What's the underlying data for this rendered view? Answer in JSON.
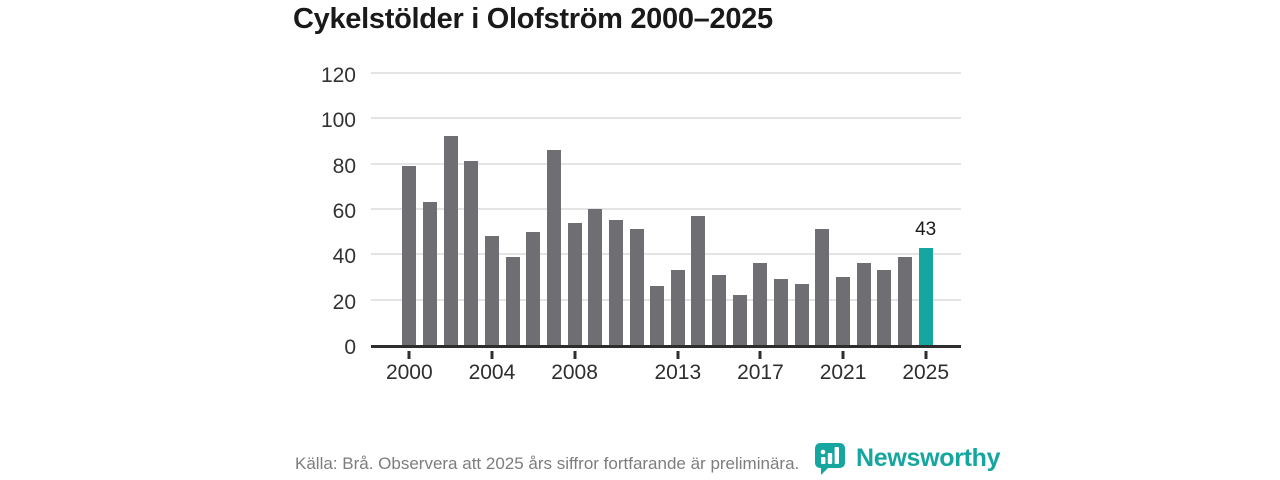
{
  "chart_data": {
    "type": "bar",
    "title": "Cykelstölder i Olofström 2000–2025",
    "x": [
      2000,
      2001,
      2002,
      2003,
      2004,
      2005,
      2006,
      2007,
      2008,
      2009,
      2010,
      2011,
      2012,
      2013,
      2014,
      2015,
      2016,
      2017,
      2018,
      2019,
      2020,
      2021,
      2022,
      2023,
      2024,
      2025
    ],
    "values": [
      79,
      63,
      92,
      81,
      48,
      39,
      50,
      86,
      54,
      60,
      55,
      51,
      26,
      33,
      57,
      31,
      22,
      36,
      29,
      27,
      51,
      30,
      36,
      33,
      39,
      43
    ],
    "xlabel": "",
    "ylabel": "",
    "ylim": [
      0,
      120
    ],
    "yticks": [
      0,
      20,
      40,
      60,
      80,
      100,
      120
    ],
    "xticks": [
      2000,
      2004,
      2008,
      2013,
      2017,
      2021,
      2025
    ],
    "grid": true,
    "legend": "none",
    "bar_color": "#6e6e73",
    "gridline_color": "#e4e4e4",
    "axis_color": "#2e2e2e",
    "highlight_year": 2025,
    "highlight_color": "#16a6a0",
    "highlight_label": "43"
  },
  "footer": {
    "source_note": "Källa: Brå. Observera att 2025 års siffror fortfarande är preliminära.",
    "logo_text": "Newsworthy",
    "logo_color": "#16a6a0"
  }
}
